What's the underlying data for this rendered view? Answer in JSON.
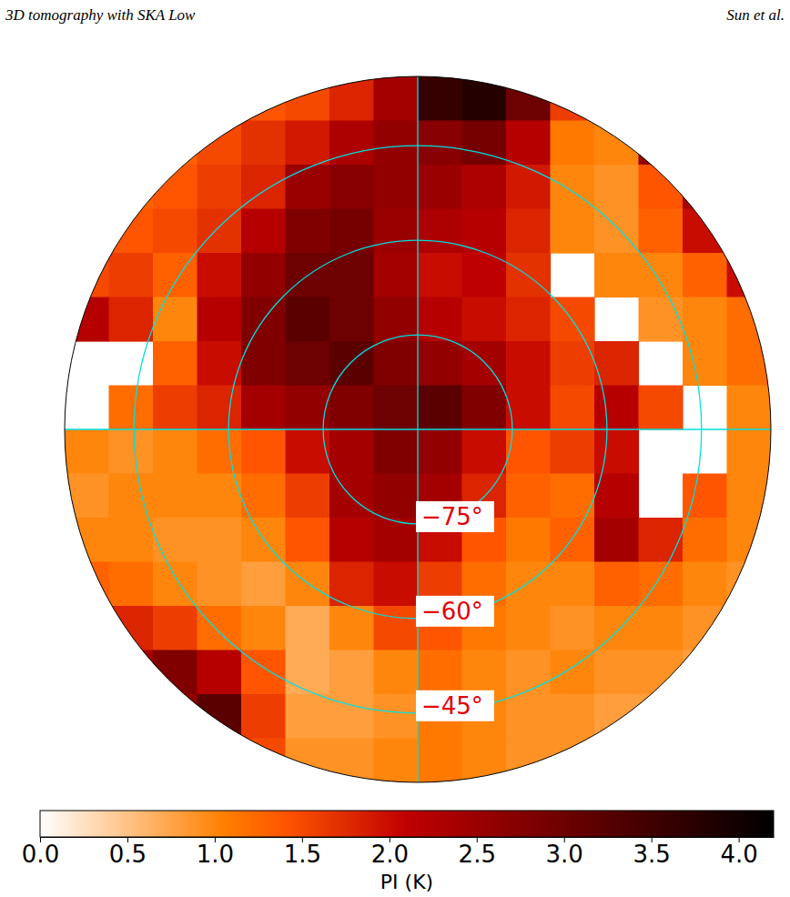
{
  "chart_data": {
    "type": "polar_map",
    "header_left": "3D tomography with SKA Low",
    "header_right": "Sun et al.",
    "dec_lim": [
      -90,
      -34
    ],
    "dec_ticks": [
      {
        "value": -75,
        "label": "−75°"
      },
      {
        "value": -60,
        "label": "−60°"
      },
      {
        "value": -45,
        "label": "−45°"
      }
    ],
    "cells": [
      [
        null,
        null,
        null,
        null,
        1.4,
        1.5,
        1.8,
        2.4,
        3.6,
        3.8,
        3.0,
        1.6,
        null,
        null,
        null,
        null
      ],
      [
        null,
        null,
        1.3,
        1.5,
        1.7,
        1.9,
        2.3,
        2.6,
        2.7,
        2.9,
        2.2,
        1.1,
        1.0,
        2.6,
        null,
        null
      ],
      [
        null,
        1.3,
        1.4,
        1.6,
        1.8,
        2.5,
        2.7,
        2.6,
        2.5,
        2.3,
        1.9,
        1.0,
        0.9,
        1.4,
        2.4,
        null
      ],
      [
        null,
        1.4,
        1.5,
        1.7,
        2.2,
        2.8,
        2.9,
        2.5,
        2.3,
        2.2,
        1.8,
        1.0,
        0.9,
        1.3,
        2.0,
        null
      ],
      [
        1.5,
        1.6,
        1.3,
        2.0,
        2.6,
        3.0,
        3.0,
        2.4,
        2.0,
        2.1,
        1.7,
        null,
        1.0,
        1.0,
        1.3,
        2.0
      ],
      [
        2.2,
        1.8,
        1.0,
        2.2,
        2.8,
        3.2,
        3.0,
        2.6,
        2.2,
        2.0,
        1.8,
        1.5,
        null,
        0.9,
        1.0,
        1.2
      ],
      [
        null,
        null,
        1.3,
        2.0,
        2.8,
        3.0,
        3.2,
        2.8,
        2.6,
        2.4,
        2.0,
        1.6,
        1.8,
        null,
        1.0,
        1.2
      ],
      [
        null,
        1.2,
        1.6,
        1.8,
        2.4,
        2.6,
        2.8,
        3.0,
        3.2,
        2.8,
        2.0,
        1.5,
        2.2,
        1.5,
        null,
        1.0
      ],
      [
        1.0,
        0.9,
        1.0,
        1.2,
        1.4,
        2.0,
        2.4,
        2.8,
        2.6,
        2.0,
        1.4,
        1.6,
        2.0,
        null,
        null,
        1.0
      ],
      [
        0.9,
        1.0,
        1.0,
        1.0,
        1.2,
        1.6,
        2.4,
        2.6,
        2.4,
        1.8,
        1.3,
        1.2,
        2.2,
        null,
        1.4,
        1.0
      ],
      [
        1.0,
        1.0,
        0.9,
        0.9,
        1.0,
        1.4,
        2.2,
        2.4,
        2.0,
        1.4,
        1.1,
        1.3,
        2.4,
        1.8,
        1.2,
        1.0
      ],
      [
        1.3,
        1.2,
        1.0,
        0.9,
        0.8,
        1.0,
        1.8,
        2.0,
        1.6,
        1.2,
        1.0,
        1.0,
        1.3,
        1.2,
        1.0,
        0.9
      ],
      [
        null,
        1.8,
        1.6,
        1.2,
        1.0,
        0.7,
        1.0,
        1.5,
        1.4,
        1.1,
        1.0,
        0.9,
        1.0,
        1.0,
        0.9,
        null
      ],
      [
        null,
        2.4,
        2.8,
        2.2,
        1.4,
        0.7,
        0.8,
        1.0,
        1.2,
        1.0,
        0.9,
        1.0,
        0.9,
        0.9,
        0.8,
        null
      ],
      [
        null,
        null,
        2.6,
        3.2,
        1.6,
        0.8,
        0.8,
        0.9,
        1.1,
        1.0,
        0.9,
        0.9,
        0.8,
        0.8,
        null,
        null
      ],
      [
        null,
        null,
        null,
        null,
        1.5,
        0.9,
        0.9,
        1.0,
        1.1,
        1.0,
        0.9,
        0.9,
        null,
        null,
        null,
        null
      ]
    ],
    "colorbar": {
      "label": "PI (K)",
      "range": [
        0,
        4.2
      ],
      "ticks": [
        {
          "value": 0,
          "label": "0.0"
        },
        0.5,
        {
          "value": 1,
          "label": "1.0"
        },
        1.5,
        {
          "value": 2,
          "label": "2.0"
        },
        2.5,
        {
          "value": 3,
          "label": "3.0"
        },
        3.5,
        {
          "value": 4,
          "label": "4.0"
        }
      ]
    }
  }
}
